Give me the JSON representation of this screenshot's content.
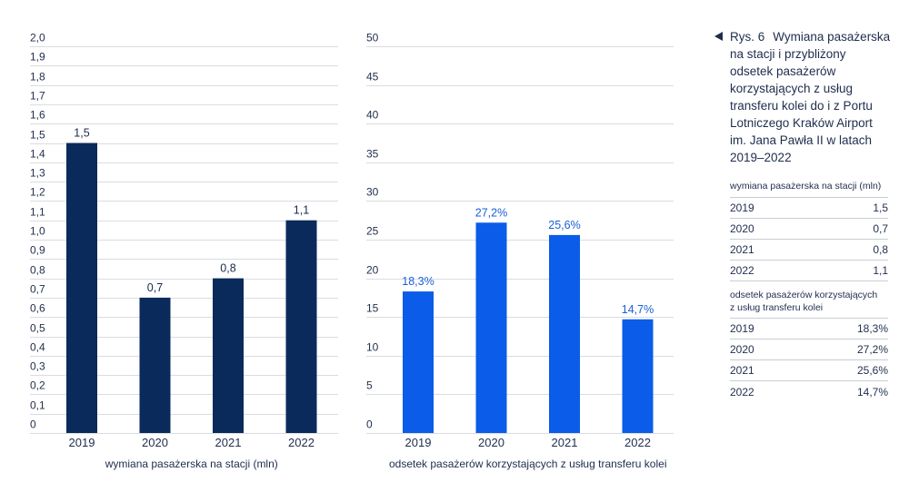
{
  "caption": {
    "marker_icon": "triangle-left-icon",
    "label": "Rys. 6",
    "lines": [
      "Wymiana pasażerska",
      "na stacji i przybliżony",
      "odsetek pasażerów",
      "korzystających z usług",
      "transferu kolei do i z Portu",
      "Lotniczego Kraków Airport",
      "im. Jana Pawła II w latach",
      "2019–2022"
    ]
  },
  "table": {
    "sections": [
      {
        "header_lines": [
          "wymiana pasażerska na stacji (mln)"
        ],
        "rows": [
          {
            "year": "2019",
            "value": "1,5"
          },
          {
            "year": "2020",
            "value": "0,7"
          },
          {
            "year": "2021",
            "value": "0,8"
          },
          {
            "year": "2022",
            "value": "1,1"
          }
        ]
      },
      {
        "header_lines": [
          "odsetek pasażerów korzystających",
          "z usług transferu kolei"
        ],
        "rows": [
          {
            "year": "2019",
            "value": "18,3%"
          },
          {
            "year": "2020",
            "value": "27,2%"
          },
          {
            "year": "2021",
            "value": "25,6%"
          },
          {
            "year": "2022",
            "value": "14,7%"
          }
        ]
      }
    ]
  },
  "colors": {
    "text": "#1f2d4d",
    "grid": "#d9dce1",
    "table_rule": "#c9cdd3"
  },
  "chart_data": [
    {
      "type": "bar",
      "categories": [
        "2019",
        "2020",
        "2021",
        "2022"
      ],
      "values": [
        1.5,
        0.7,
        0.8,
        1.1
      ],
      "value_labels": [
        "1,5",
        "0,7",
        "0,8",
        "1,1"
      ],
      "xlabel": "wymiana pasażerska na stacji (mln)",
      "ylim": [
        0,
        2.0
      ],
      "ytick_values": [
        0,
        0.1,
        0.2,
        0.3,
        0.4,
        0.5,
        0.6,
        0.7,
        0.8,
        0.9,
        1.0,
        1.1,
        1.2,
        1.3,
        1.4,
        1.5,
        1.6,
        1.7,
        1.8,
        1.9,
        2.0
      ],
      "ytick_labels": [
        "0",
        "0,1",
        "0,2",
        "0,3",
        "0,4",
        "0,5",
        "0,6",
        "0,7",
        "0,8",
        "0,9",
        "1,0",
        "1,1",
        "1,2",
        "1,3",
        "1,4",
        "1,5",
        "1,6",
        "1,7",
        "1,8",
        "1,9",
        "2,0"
      ],
      "grid": true,
      "bar_color": "#0a2a5c",
      "label_color": "#1c2b4a"
    },
    {
      "type": "bar",
      "categories": [
        "2019",
        "2020",
        "2021",
        "2022"
      ],
      "values": [
        18.3,
        27.2,
        25.6,
        14.7
      ],
      "value_labels": [
        "18,3%",
        "27,2%",
        "25,6%",
        "14,7%"
      ],
      "xlabel": "odsetek pasażerów korzystających z usług transferu kolei",
      "ylim": [
        0,
        50
      ],
      "ytick_values": [
        0,
        5,
        10,
        15,
        20,
        25,
        30,
        35,
        40,
        45,
        50
      ],
      "ytick_labels": [
        "0",
        "5",
        "10",
        "15",
        "20",
        "25",
        "30",
        "35",
        "40",
        "45",
        "50"
      ],
      "grid": true,
      "bar_color": "#0b5ce8",
      "label_color": "#1a5fd6"
    }
  ]
}
